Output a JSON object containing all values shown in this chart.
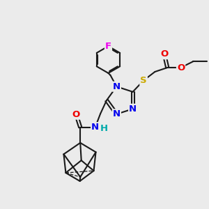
{
  "bg_color": "#ebebeb",
  "bond_color": "#1a1a1a",
  "bond_width": 1.5,
  "atom_colors": {
    "N": "#0000ee",
    "O": "#ee0000",
    "S": "#ccaa00",
    "F": "#ee00ee",
    "C": "#1a1a1a",
    "H": "#00aaaa"
  },
  "fs": 9.5
}
